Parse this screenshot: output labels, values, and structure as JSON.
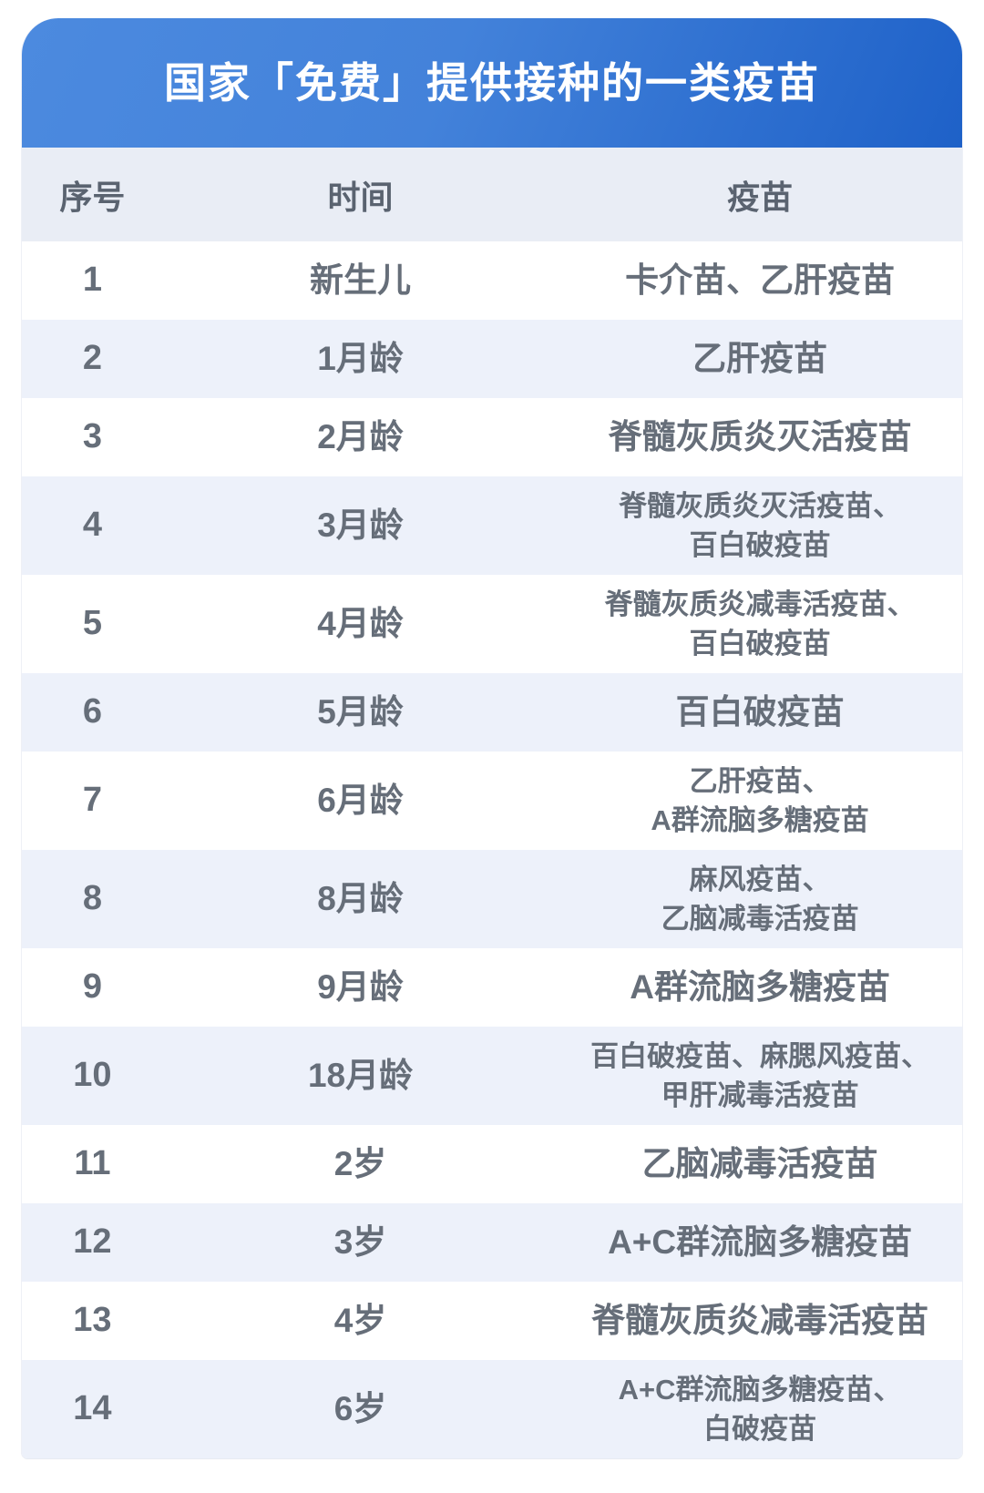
{
  "title": "国家「免费」提供接种的一类疫苗",
  "table": {
    "columns": [
      {
        "key": "no",
        "label": "序号"
      },
      {
        "key": "time",
        "label": "时间"
      },
      {
        "key": "vaccine",
        "label": "疫苗"
      }
    ],
    "rows": [
      {
        "no": "1",
        "time": "新生儿",
        "vaccine": [
          "卡介苗、乙肝疫苗"
        ]
      },
      {
        "no": "2",
        "time": "1月龄",
        "vaccine": [
          "乙肝疫苗"
        ]
      },
      {
        "no": "3",
        "time": "2月龄",
        "vaccine": [
          "脊髓灰质炎灭活疫苗"
        ]
      },
      {
        "no": "4",
        "time": "3月龄",
        "vaccine": [
          "脊髓灰质炎灭活疫苗、",
          "百白破疫苗"
        ]
      },
      {
        "no": "5",
        "time": "4月龄",
        "vaccine": [
          "脊髓灰质炎减毒活疫苗、",
          "百白破疫苗"
        ]
      },
      {
        "no": "6",
        "time": "5月龄",
        "vaccine": [
          "百白破疫苗"
        ]
      },
      {
        "no": "7",
        "time": "6月龄",
        "vaccine": [
          "乙肝疫苗、",
          "A群流脑多糖疫苗"
        ]
      },
      {
        "no": "8",
        "time": "8月龄",
        "vaccine": [
          "麻风疫苗、",
          "乙脑减毒活疫苗"
        ]
      },
      {
        "no": "9",
        "time": "9月龄",
        "vaccine": [
          "A群流脑多糖疫苗"
        ]
      },
      {
        "no": "10",
        "time": "18月龄",
        "vaccine": [
          "百白破疫苗、麻腮风疫苗、",
          "甲肝减毒活疫苗"
        ]
      },
      {
        "no": "11",
        "time": "2岁",
        "vaccine": [
          "乙脑减毒活疫苗"
        ]
      },
      {
        "no": "12",
        "time": "3岁",
        "vaccine": [
          "A+C群流脑多糖疫苗"
        ]
      },
      {
        "no": "13",
        "time": "4岁",
        "vaccine": [
          "脊髓灰质炎减毒活疫苗"
        ]
      },
      {
        "no": "14",
        "time": "6岁",
        "vaccine": [
          "A+C群流脑多糖疫苗、",
          "白破疫苗"
        ]
      }
    ]
  },
  "colors": {
    "header_gradient_start": "#4c8adf",
    "header_gradient_end": "#1e61c8",
    "column_header_bg": "#e9edf5",
    "row_alt_bg": "#edf1fa",
    "row_bg": "#ffffff",
    "text": "#666e79",
    "title_text": "#ffffff"
  },
  "chart_data": {
    "type": "table",
    "title": "国家「免费」提供接种的一类疫苗",
    "columns": [
      "序号",
      "时间",
      "疫苗"
    ],
    "rows": [
      [
        "1",
        "新生儿",
        "卡介苗、乙肝疫苗"
      ],
      [
        "2",
        "1月龄",
        "乙肝疫苗"
      ],
      [
        "3",
        "2月龄",
        "脊髓灰质炎灭活疫苗"
      ],
      [
        "4",
        "3月龄",
        "脊髓灰质炎灭活疫苗、百白破疫苗"
      ],
      [
        "5",
        "4月龄",
        "脊髓灰质炎减毒活疫苗、百白破疫苗"
      ],
      [
        "6",
        "5月龄",
        "百白破疫苗"
      ],
      [
        "7",
        "6月龄",
        "乙肝疫苗、A群流脑多糖疫苗"
      ],
      [
        "8",
        "8月龄",
        "麻风疫苗、乙脑减毒活疫苗"
      ],
      [
        "9",
        "9月龄",
        "A群流脑多糖疫苗"
      ],
      [
        "10",
        "18月龄",
        "百白破疫苗、麻腮风疫苗、甲肝减毒活疫苗"
      ],
      [
        "11",
        "2岁",
        "乙脑减毒活疫苗"
      ],
      [
        "12",
        "3岁",
        "A+C群流脑多糖疫苗"
      ],
      [
        "13",
        "4岁",
        "脊髓灰质炎减毒活疫苗"
      ],
      [
        "14",
        "6岁",
        "A+C群流脑多糖疫苗、白破疫苗"
      ]
    ],
    "layout": {
      "striped": true,
      "header_style": "blue-gradient-banner"
    }
  }
}
